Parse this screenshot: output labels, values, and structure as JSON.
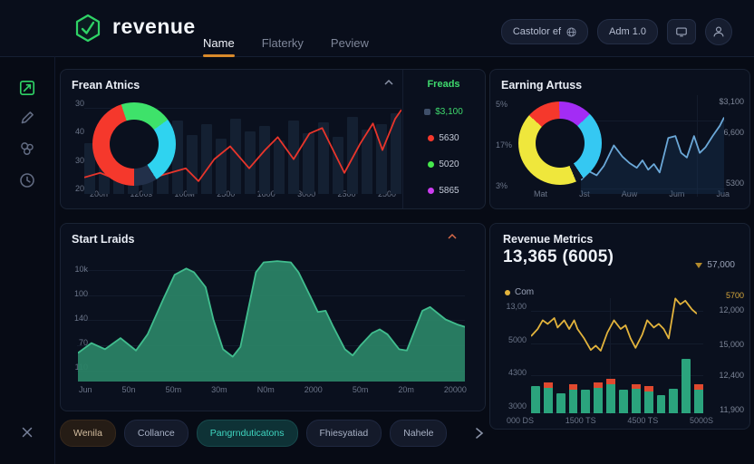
{
  "topbar": {
    "brand": "revenue",
    "nav": [
      {
        "label": "Name",
        "active": true
      },
      {
        "label": "Flaterky",
        "active": false
      },
      {
        "label": "Peview",
        "active": false
      }
    ],
    "pills": [
      {
        "label": "Castolor ef"
      },
      {
        "label": "Adm 1.0"
      }
    ]
  },
  "sidebar": {
    "items": [
      {
        "icon": "dashboard-icon",
        "active": true
      },
      {
        "icon": "pen-icon",
        "active": false
      },
      {
        "icon": "puzzle-icon",
        "active": false
      },
      {
        "icon": "clock-icon",
        "active": false
      }
    ]
  },
  "panels": {
    "frean_atnics": {
      "title": "Frean Atnics",
      "y_ticks": [
        "30",
        "40",
        "30",
        "20"
      ],
      "x_ticks": [
        "200n",
        "1200s",
        "100M",
        "2500",
        "1600",
        "3000",
        "2500",
        "2500"
      ],
      "donut": {
        "from": -18,
        "hole": "#0a101e",
        "slices": [
          {
            "name": "green",
            "color": "#3ee26a",
            "pct": 20
          },
          {
            "name": "cyan",
            "color": "#2fd3f0",
            "pct": 26
          },
          {
            "name": "navy",
            "color": "#22304a",
            "pct": 9
          },
          {
            "name": "red",
            "color": "#f5382c",
            "pct": 45
          }
        ]
      },
      "line": {
        "color": "#e8352b",
        "points": [
          [
            0,
            82
          ],
          [
            5,
            77
          ],
          [
            10,
            84
          ],
          [
            16,
            75
          ],
          [
            21,
            83
          ],
          [
            26,
            78
          ],
          [
            32,
            72
          ],
          [
            36,
            86
          ],
          [
            41,
            62
          ],
          [
            46,
            48
          ],
          [
            52,
            72
          ],
          [
            57,
            52
          ],
          [
            61,
            38
          ],
          [
            66,
            62
          ],
          [
            71,
            34
          ],
          [
            75,
            28
          ],
          [
            82,
            77
          ],
          [
            87,
            45
          ],
          [
            91,
            23
          ],
          [
            94,
            52
          ],
          [
            98,
            18
          ],
          [
            100,
            8
          ]
        ]
      },
      "bars": {
        "color": "#142032",
        "values": [
          55,
          70,
          62,
          78,
          58,
          72,
          80,
          64,
          76,
          60,
          82,
          68,
          74,
          58,
          80,
          66,
          78,
          62,
          84,
          70,
          76,
          88
        ]
      },
      "legend": {
        "title": "Freads",
        "items": [
          {
            "dot": "#3f4f6a",
            "label": "$3,100"
          },
          {
            "dot": "#f5382c",
            "label": "5630"
          },
          {
            "dot": "#46e84c",
            "label": "5020"
          },
          {
            "dot": "#cc3df0",
            "label": "5865"
          }
        ]
      }
    },
    "earning_artuss": {
      "title": "Earning Artuss",
      "y_ticks": [
        "5%",
        "17%",
        "3%"
      ],
      "right_labels": [
        "$3,100",
        "6,600",
        "5300"
      ],
      "x_ticks": [
        "Mat",
        "Jst",
        "Auw",
        "Jum",
        "Jua"
      ],
      "donut": {
        "from": -48,
        "hole": "#0a101e",
        "slices": [
          {
            "name": "red",
            "color": "#f5382c",
            "pct": 13
          },
          {
            "name": "purple",
            "color": "#a32cf5",
            "pct": 13
          },
          {
            "name": "cyan",
            "color": "#35c8f2",
            "pct": 28
          },
          {
            "name": "gap",
            "color": "#0e1524",
            "pct": 3
          },
          {
            "name": "yellow",
            "color": "#efe73c",
            "pct": 43
          }
        ]
      },
      "line": {
        "color": "#6ba8d8",
        "fill": "#1b3a5c",
        "fill_opacity": 0.35,
        "points": [
          [
            0,
            85
          ],
          [
            6,
            76
          ],
          [
            11,
            80
          ],
          [
            16,
            70
          ],
          [
            23,
            48
          ],
          [
            29,
            60
          ],
          [
            34,
            67
          ],
          [
            39,
            72
          ],
          [
            43,
            64
          ],
          [
            47,
            74
          ],
          [
            51,
            68
          ],
          [
            55,
            77
          ],
          [
            61,
            40
          ],
          [
            66,
            38
          ],
          [
            70,
            56
          ],
          [
            74,
            61
          ],
          [
            79,
            38
          ],
          [
            83,
            56
          ],
          [
            87,
            50
          ],
          [
            92,
            38
          ],
          [
            97,
            27
          ],
          [
            100,
            18
          ]
        ]
      }
    },
    "start_lraids": {
      "title": "Start Lraids",
      "y_ticks": [
        "10k",
        "100",
        "140",
        "70",
        "110"
      ],
      "x_ticks": [
        "Jun",
        "50n",
        "50m",
        "30m",
        "N0m",
        "2000",
        "50m",
        "20m",
        "20000"
      ],
      "area": {
        "color": "#41bd8e",
        "fill": "#2a8265",
        "fill_opacity": 0.95,
        "points": [
          [
            0,
            77
          ],
          [
            3.5,
            69
          ],
          [
            7,
            74
          ],
          [
            11,
            65
          ],
          [
            15,
            75
          ],
          [
            18,
            62
          ],
          [
            22,
            34
          ],
          [
            25,
            14
          ],
          [
            28,
            9
          ],
          [
            30,
            12
          ],
          [
            33,
            24
          ],
          [
            35,
            50
          ],
          [
            37.5,
            74
          ],
          [
            40,
            80
          ],
          [
            42,
            72
          ],
          [
            44,
            42
          ],
          [
            46,
            12
          ],
          [
            48,
            4
          ],
          [
            51.5,
            3
          ],
          [
            55,
            4
          ],
          [
            57,
            12
          ],
          [
            60,
            31
          ],
          [
            62,
            44
          ],
          [
            64,
            43
          ],
          [
            66,
            56
          ],
          [
            69,
            74
          ],
          [
            71,
            79
          ],
          [
            73,
            71
          ],
          [
            76,
            61
          ],
          [
            78,
            58
          ],
          [
            80,
            62
          ],
          [
            83,
            74
          ],
          [
            85,
            75
          ],
          [
            87,
            59
          ],
          [
            89,
            43
          ],
          [
            91,
            40
          ],
          [
            93,
            45
          ],
          [
            95,
            50
          ],
          [
            98,
            54
          ],
          [
            100,
            56
          ]
        ]
      }
    },
    "revenue_metrics": {
      "title": "Revenue Metrics",
      "big_number": "13,365 (6005)",
      "delta_value": "57,000",
      "legend_label": "Com",
      "legend_dot": "#e2b33c",
      "left_ticks": [
        "13,00",
        "5000",
        "4300",
        "3000"
      ],
      "right_ticks": [
        {
          "label": "5700",
          "color": "#d9a93c"
        },
        {
          "label": "12,000"
        },
        {
          "label": "15,000"
        },
        {
          "label": "12,400"
        },
        {
          "label": "11,900"
        }
      ],
      "x_ticks": [
        "000 DS",
        "1500 TS",
        "4500 TS",
        "5000S"
      ],
      "line": {
        "color": "#e2b33c",
        "points": [
          [
            0,
            60
          ],
          [
            4,
            50
          ],
          [
            7,
            38
          ],
          [
            10,
            43
          ],
          [
            14,
            35
          ],
          [
            16,
            48
          ],
          [
            20,
            38
          ],
          [
            23,
            50
          ],
          [
            26,
            38
          ],
          [
            28,
            50
          ],
          [
            32,
            63
          ],
          [
            36,
            79
          ],
          [
            39,
            73
          ],
          [
            42,
            80
          ],
          [
            46,
            55
          ],
          [
            50,
            38
          ],
          [
            54,
            50
          ],
          [
            57,
            45
          ],
          [
            60,
            63
          ],
          [
            63,
            76
          ],
          [
            67,
            58
          ],
          [
            70,
            38
          ],
          [
            74,
            48
          ],
          [
            77,
            43
          ],
          [
            80,
            50
          ],
          [
            83,
            63
          ],
          [
            87,
            8
          ],
          [
            90,
            16
          ],
          [
            93,
            11
          ],
          [
            97,
            23
          ],
          [
            100,
            29
          ]
        ]
      },
      "bars": {
        "color": "#2ba47d",
        "cap_color": "#e0492f",
        "items": [
          {
            "h": 35,
            "cap": 0
          },
          {
            "h": 40,
            "cap": 6
          },
          {
            "h": 26,
            "cap": 0
          },
          {
            "h": 38,
            "cap": 6
          },
          {
            "h": 31,
            "cap": 0
          },
          {
            "h": 40,
            "cap": 6
          },
          {
            "h": 45,
            "cap": 6
          },
          {
            "h": 31,
            "cap": 0
          },
          {
            "h": 38,
            "cap": 5
          },
          {
            "h": 35,
            "cap": 6
          },
          {
            "h": 24,
            "cap": 0
          },
          {
            "h": 32,
            "cap": 0
          },
          {
            "h": 71,
            "cap": 0
          },
          {
            "h": 38,
            "cap": 6
          }
        ]
      }
    }
  },
  "chips": {
    "items": [
      {
        "label": "Wenila",
        "variant": "warm"
      },
      {
        "label": "Collance",
        "variant": "default"
      },
      {
        "label": "Pangrnduticatons",
        "variant": "teal"
      },
      {
        "label": "Fhiesyatiad",
        "variant": "default"
      },
      {
        "label": "Nahele",
        "variant": "default"
      }
    ]
  }
}
